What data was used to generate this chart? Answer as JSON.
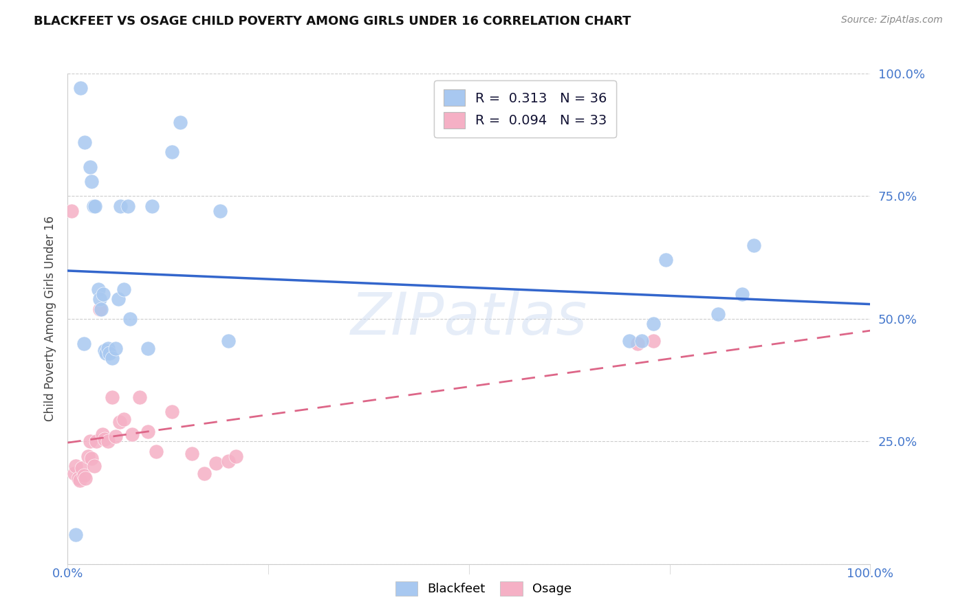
{
  "title": "BLACKFEET VS OSAGE CHILD POVERTY AMONG GIRLS UNDER 16 CORRELATION CHART",
  "source": "Source: ZipAtlas.com",
  "ylabel": "Child Poverty Among Girls Under 16",
  "xlim": [
    0,
    1.0
  ],
  "ylim": [
    0,
    1.0
  ],
  "xticks": [
    0.0,
    0.25,
    0.5,
    0.75,
    1.0
  ],
  "yticks": [
    0.0,
    0.25,
    0.5,
    0.75,
    1.0
  ],
  "xticklabels": [
    "0.0%",
    "",
    "",
    "",
    "100.0%"
  ],
  "yticklabels_right": [
    "",
    "25.0%",
    "50.0%",
    "75.0%",
    "100.0%"
  ],
  "legend_R_blue": "0.313",
  "legend_N_blue": "36",
  "legend_R_pink": "0.094",
  "legend_N_pink": "33",
  "watermark": "ZIPatlas",
  "blue_color": "#a8c8f0",
  "pink_color": "#f5b0c5",
  "line_blue_color": "#3366cc",
  "line_pink_color": "#dd6688",
  "blackfeet_x": [
    0.016,
    0.021,
    0.028,
    0.03,
    0.032,
    0.034,
    0.038,
    0.04,
    0.042,
    0.044,
    0.046,
    0.048,
    0.05,
    0.052,
    0.055,
    0.06,
    0.063,
    0.066,
    0.07,
    0.075,
    0.078,
    0.1,
    0.105,
    0.13,
    0.14,
    0.19,
    0.2,
    0.7,
    0.715,
    0.73,
    0.745,
    0.81,
    0.84,
    0.855,
    0.01,
    0.02
  ],
  "blackfeet_y": [
    0.97,
    0.86,
    0.81,
    0.78,
    0.73,
    0.73,
    0.56,
    0.54,
    0.52,
    0.55,
    0.435,
    0.43,
    0.44,
    0.43,
    0.42,
    0.44,
    0.54,
    0.73,
    0.56,
    0.73,
    0.5,
    0.44,
    0.73,
    0.84,
    0.9,
    0.72,
    0.455,
    0.455,
    0.455,
    0.49,
    0.62,
    0.51,
    0.55,
    0.65,
    0.06,
    0.45
  ],
  "osage_x": [
    0.005,
    0.008,
    0.01,
    0.013,
    0.015,
    0.018,
    0.02,
    0.022,
    0.025,
    0.028,
    0.03,
    0.033,
    0.036,
    0.04,
    0.043,
    0.046,
    0.05,
    0.055,
    0.06,
    0.065,
    0.07,
    0.08,
    0.09,
    0.1,
    0.11,
    0.13,
    0.155,
    0.17,
    0.185,
    0.2,
    0.21,
    0.71,
    0.73
  ],
  "osage_y": [
    0.72,
    0.185,
    0.2,
    0.175,
    0.17,
    0.195,
    0.18,
    0.175,
    0.22,
    0.25,
    0.215,
    0.2,
    0.25,
    0.52,
    0.265,
    0.255,
    0.25,
    0.34,
    0.26,
    0.29,
    0.295,
    0.265,
    0.34,
    0.27,
    0.23,
    0.31,
    0.225,
    0.185,
    0.205,
    0.21,
    0.22,
    0.45,
    0.455
  ]
}
